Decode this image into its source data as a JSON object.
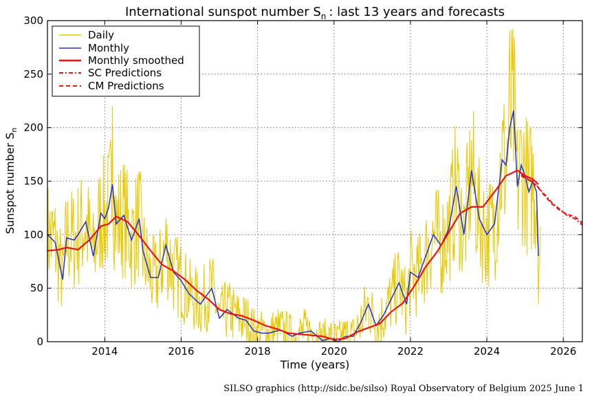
{
  "chart_data": {
    "type": "line",
    "title": "International sunspot number S",
    "title_subscript": "n",
    "title_suffix": ": last 13 years and forecasts",
    "xlabel": "Time (years)",
    "ylabel": "Sunspot number S",
    "ylabel_subscript": "n",
    "xlim": [
      2012.5,
      2026.5
    ],
    "ylim": [
      0,
      300
    ],
    "x_ticks": [
      2014,
      2016,
      2018,
      2020,
      2022,
      2024,
      2026
    ],
    "y_ticks": [
      0,
      50,
      100,
      150,
      200,
      250,
      300
    ],
    "grid": true,
    "legend_position": "top-left",
    "series": [
      {
        "name": "Daily",
        "color": "#e8c800",
        "style": "solid",
        "x_range": [
          2012.5,
          2025.4
        ],
        "noise": 38,
        "peaks": [
          {
            "x": 2014.2,
            "y": 220
          },
          {
            "x": 2024.6,
            "y": 291
          }
        ]
      },
      {
        "name": "Monthly",
        "color": "#2030c8",
        "style": "solid",
        "x": [
          2012.5,
          2012.7,
          2012.9,
          2013.0,
          2013.2,
          2013.3,
          2013.5,
          2013.7,
          2013.9,
          2014.0,
          2014.1,
          2014.2,
          2014.3,
          2014.5,
          2014.7,
          2014.9,
          2015.0,
          2015.2,
          2015.4,
          2015.6,
          2015.8,
          2016.0,
          2016.2,
          2016.5,
          2016.8,
          2017.0,
          2017.2,
          2017.5,
          2017.7,
          2017.9,
          2018.1,
          2018.3,
          2018.6,
          2018.9,
          2019.1,
          2019.4,
          2019.7,
          2019.9,
          2020.1,
          2020.3,
          2020.5,
          2020.7,
          2020.9,
          2021.1,
          2021.3,
          2021.5,
          2021.7,
          2021.9,
          2022.0,
          2022.2,
          2022.4,
          2022.6,
          2022.8,
          2023.0,
          2023.2,
          2023.4,
          2023.6,
          2023.8,
          2024.0,
          2024.2,
          2024.4,
          2024.5,
          2024.6,
          2024.7,
          2024.8,
          2024.9,
          2025.0,
          2025.1,
          2025.2,
          2025.3,
          2025.35
        ],
        "y": [
          100,
          93,
          58,
          97,
          95,
          100,
          112,
          80,
          120,
          115,
          125,
          147,
          110,
          118,
          95,
          115,
          85,
          60,
          60,
          90,
          65,
          57,
          45,
          35,
          50,
          22,
          30,
          22,
          20,
          10,
          8,
          8,
          11,
          5,
          8,
          10,
          1,
          3,
          0,
          5,
          5,
          18,
          35,
          15,
          25,
          40,
          55,
          35,
          65,
          60,
          80,
          100,
          90,
          105,
          145,
          100,
          160,
          115,
          100,
          110,
          170,
          165,
          200,
          216,
          145,
          165,
          155,
          140,
          150,
          140,
          80
        ]
      },
      {
        "name": "Monthly smoothed",
        "color": "#ee1111",
        "style": "solid",
        "x": [
          2012.5,
          2012.8,
          2013.0,
          2013.3,
          2013.6,
          2013.9,
          2014.1,
          2014.3,
          2014.6,
          2014.9,
          2015.2,
          2015.5,
          2015.8,
          2016.1,
          2016.4,
          2016.7,
          2017.0,
          2017.3,
          2017.6,
          2017.9,
          2018.2,
          2018.5,
          2018.8,
          2019.1,
          2019.4,
          2019.7,
          2020.0,
          2020.3,
          2020.6,
          2020.9,
          2021.2,
          2021.5,
          2021.8,
          2022.1,
          2022.4,
          2022.7,
          2023.0,
          2023.3,
          2023.6,
          2023.9,
          2024.2,
          2024.5,
          2024.8,
          2025.0,
          2025.2,
          2025.35
        ],
        "y": [
          85,
          86,
          88,
          86,
          95,
          108,
          110,
          117,
          112,
          99,
          85,
          72,
          66,
          58,
          48,
          40,
          30,
          26,
          24,
          20,
          15,
          12,
          8,
          7,
          6,
          5,
          2,
          3,
          9,
          13,
          17,
          28,
          36,
          52,
          70,
          84,
          102,
          120,
          126,
          126,
          140,
          155,
          160,
          155,
          152,
          147
        ]
      },
      {
        "name": "SC Predictions",
        "color": "#ee1111",
        "style": "dashdot",
        "x": [
          2024.9,
          2025.1,
          2025.3,
          2025.5,
          2025.7,
          2025.9,
          2026.1,
          2026.3,
          2026.5
        ],
        "y": [
          156,
          152,
          146,
          138,
          130,
          124,
          118,
          115,
          109
        ]
      },
      {
        "name": "CM Predictions",
        "color": "#ee1111",
        "style": "dashed",
        "x": [
          2024.9,
          2025.1,
          2025.3,
          2025.5,
          2025.7,
          2025.9,
          2026.1,
          2026.3,
          2026.5
        ],
        "y": [
          155,
          151,
          146,
          137,
          129,
          123,
          119,
          117,
          111
        ]
      }
    ]
  },
  "credit": "SILSO graphics (http://sidc.be/silso)  Royal Observatory of Belgium  2025 June 1"
}
